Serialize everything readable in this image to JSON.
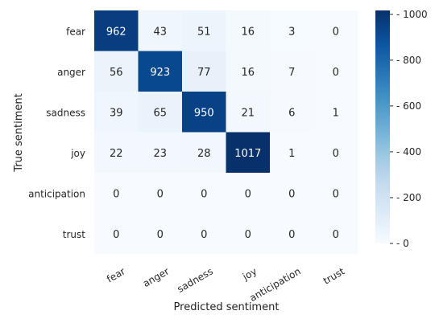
{
  "chart_data": {
    "type": "heatmap",
    "title": "",
    "xlabel": "Predicted sentiment",
    "ylabel": "True sentiment",
    "x_categories": [
      "fear",
      "anger",
      "sadness",
      "joy",
      "anticipation",
      "trust"
    ],
    "y_categories": [
      "fear",
      "anger",
      "sadness",
      "joy",
      "anticipation",
      "trust"
    ],
    "values": [
      [
        962,
        43,
        51,
        16,
        3,
        0
      ],
      [
        56,
        923,
        77,
        16,
        7,
        0
      ],
      [
        39,
        65,
        950,
        21,
        6,
        1
      ],
      [
        22,
        23,
        28,
        1017,
        1,
        0
      ],
      [
        0,
        0,
        0,
        0,
        0,
        0
      ],
      [
        0,
        0,
        0,
        0,
        0,
        0
      ]
    ],
    "colormap": "Blues",
    "color_range": [
      0,
      1017
    ],
    "colorbar_ticks": [
      0,
      200,
      400,
      600,
      800,
      1000
    ],
    "annotations": true
  }
}
